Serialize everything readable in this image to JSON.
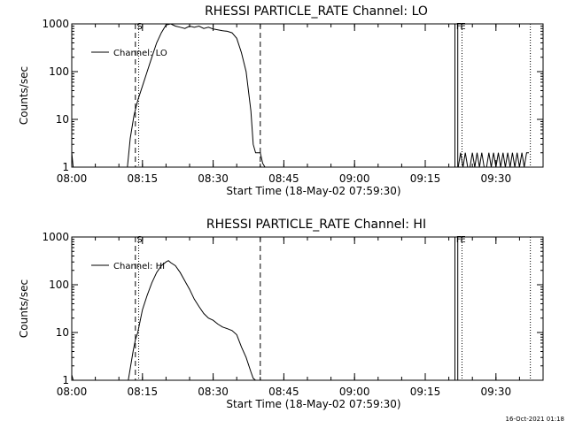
{
  "footer_timestamp": "16-Oct-2021 01:18",
  "chart_data": [
    {
      "type": "line",
      "title": "RHESSI PARTICLE_RATE Channel: LO",
      "xlabel": "Start Time (18-May-02 07:59:30)",
      "ylabel": "Counts/sec",
      "y_scale": "log",
      "ylim": [
        1,
        1000
      ],
      "xlim_minutes": [
        0,
        100
      ],
      "y_ticks": [
        "1",
        "10",
        "100",
        "1000"
      ],
      "x_ticks": [
        {
          "t": 0,
          "label": "08:00"
        },
        {
          "t": 15,
          "label": "08:15"
        },
        {
          "t": 30,
          "label": "08:30"
        },
        {
          "t": 45,
          "label": "08:45"
        },
        {
          "t": 60,
          "label": "09:00"
        },
        {
          "t": 75,
          "label": "09:15"
        },
        {
          "t": 90,
          "label": "09:30"
        }
      ],
      "legend": {
        "label": "Channel: LO",
        "position": "top-left"
      },
      "markers": [
        {
          "t": 13.5,
          "style": "dashed",
          "label": ""
        },
        {
          "t": 14.2,
          "style": "dotted",
          "label": "S"
        },
        {
          "t": 40.0,
          "style": "dashed",
          "label": ""
        },
        {
          "t": 81.3,
          "style": "solid",
          "label": ""
        },
        {
          "t": 81.9,
          "style": "solid",
          "label": "F"
        },
        {
          "t": 82.8,
          "style": "dotted",
          "label": "E"
        },
        {
          "t": 97.3,
          "style": "dotted",
          "label": ""
        }
      ],
      "series": [
        {
          "x": [
            0,
            0.3,
            11.8,
            12.4,
            13.2,
            14.0,
            15.0,
            16.0,
            17.0,
            18.0,
            19.0,
            20.0,
            21.0,
            22.0,
            23.0,
            24.0,
            25.0,
            26.0,
            27.0,
            28.0,
            29.0,
            30.0,
            31.0,
            32.0,
            33.0,
            34.0,
            35.0,
            36.0,
            37.0,
            38.0,
            38.5,
            39.0,
            39.5,
            40.0,
            40.5,
            41.0,
            82.0,
            82.5,
            83.0,
            83.5,
            84.0,
            84.5,
            85.0,
            85.5,
            86.0,
            86.5,
            87.0,
            87.5,
            88.0,
            88.5,
            89.0,
            89.5,
            90.0,
            90.5,
            91.0,
            91.5,
            92.0,
            92.5,
            93.0,
            93.5,
            94.0,
            94.5,
            95.0,
            95.5,
            96.0,
            96.5,
            97.0
          ],
          "y": [
            2,
            1,
            1,
            4,
            12,
            25,
            50,
            100,
            200,
            400,
            650,
            950,
            1000,
            900,
            850,
            800,
            900,
            850,
            900,
            800,
            850,
            780,
            750,
            720,
            700,
            650,
            500,
            250,
            100,
            15,
            3,
            2,
            2,
            2,
            1.2,
            1,
            1,
            2,
            1,
            2,
            1,
            1,
            2,
            1,
            2,
            1,
            2,
            1,
            1,
            2,
            1,
            2,
            1,
            2,
            1,
            2,
            1,
            2,
            1,
            2,
            1,
            2,
            1,
            2,
            1,
            2,
            2
          ]
        }
      ]
    },
    {
      "type": "line",
      "title": "RHESSI PARTICLE_RATE Channel: HI",
      "xlabel": "Start Time (18-May-02 07:59:30)",
      "ylabel": "Counts/sec",
      "y_scale": "log",
      "ylim": [
        1,
        1000
      ],
      "xlim_minutes": [
        0,
        100
      ],
      "y_ticks": [
        "1",
        "10",
        "100",
        "1000"
      ],
      "x_ticks": [
        {
          "t": 0,
          "label": "08:00"
        },
        {
          "t": 15,
          "label": "08:15"
        },
        {
          "t": 30,
          "label": "08:30"
        },
        {
          "t": 45,
          "label": "08:45"
        },
        {
          "t": 60,
          "label": "09:00"
        },
        {
          "t": 75,
          "label": "09:15"
        },
        {
          "t": 90,
          "label": "09:30"
        }
      ],
      "legend": {
        "label": "Channel: HI",
        "position": "top-left"
      },
      "markers": [
        {
          "t": 13.5,
          "style": "dashed",
          "label": ""
        },
        {
          "t": 14.2,
          "style": "dotted",
          "label": "S"
        },
        {
          "t": 40.0,
          "style": "dashed",
          "label": ""
        },
        {
          "t": 81.3,
          "style": "solid",
          "label": ""
        },
        {
          "t": 81.9,
          "style": "solid",
          "label": "F"
        },
        {
          "t": 82.8,
          "style": "dotted",
          "label": "E"
        },
        {
          "t": 97.3,
          "style": "dotted",
          "label": ""
        }
      ],
      "series": [
        {
          "x": [
            0,
            0.3,
            12.0,
            12.5,
            13.0,
            13.5,
            14.0,
            15.0,
            16.0,
            17.0,
            18.0,
            19.0,
            20.0,
            20.5,
            21.0,
            22.0,
            23.0,
            24.0,
            25.0,
            26.0,
            27.0,
            28.0,
            29.0,
            30.0,
            31.0,
            32.0,
            33.0,
            34.0,
            35.0,
            36.0,
            37.0,
            38.0,
            38.5,
            39.0
          ],
          "y": [
            1.3,
            1,
            1,
            2,
            4,
            7,
            10,
            30,
            60,
            110,
            180,
            250,
            300,
            320,
            290,
            250,
            180,
            120,
            80,
            50,
            35,
            25,
            20,
            18,
            15,
            13,
            12,
            11,
            9,
            5,
            3,
            1.5,
            1.1,
            1
          ]
        }
      ]
    }
  ]
}
